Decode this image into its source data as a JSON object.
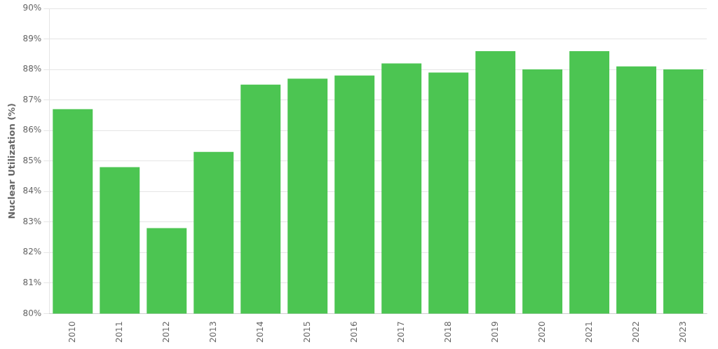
{
  "chart_data": {
    "type": "bar",
    "categories": [
      "2010",
      "2011",
      "2012",
      "2013",
      "2014",
      "2015",
      "2016",
      "2017",
      "2018",
      "2019",
      "2020",
      "2021",
      "2022",
      "2023"
    ],
    "values": [
      86.7,
      84.8,
      82.8,
      85.3,
      87.5,
      87.7,
      87.8,
      88.2,
      87.9,
      88.6,
      88.0,
      88.6,
      88.1,
      88.0
    ],
    "color": "#4cc552",
    "ylabel": "Nuclear Utilization (%)",
    "ylim": [
      80,
      90
    ],
    "yticks": [
      {
        "value": 80,
        "label": "80%"
      },
      {
        "value": 81,
        "label": "81%"
      },
      {
        "value": 82,
        "label": "82%"
      },
      {
        "value": 83,
        "label": "83%"
      },
      {
        "value": 84,
        "label": "84%"
      },
      {
        "value": 85,
        "label": "85%"
      },
      {
        "value": 86,
        "label": "86%"
      },
      {
        "value": 87,
        "label": "87%"
      },
      {
        "value": 88,
        "label": "88%"
      },
      {
        "value": 89,
        "label": "89%"
      },
      {
        "value": 90,
        "label": "90%"
      }
    ],
    "grid": true
  }
}
